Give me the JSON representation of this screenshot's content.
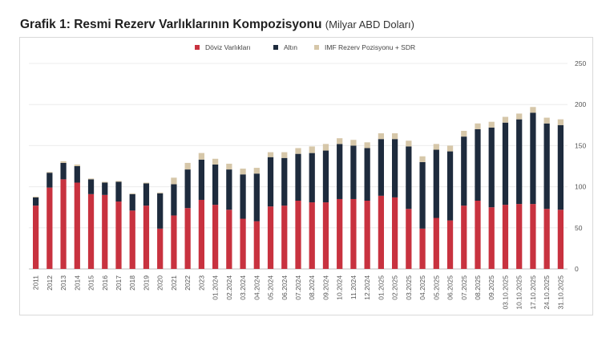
{
  "title": {
    "main": "Grafik 1: Resmi Rezerv Varlıklarının Kompozisyonu",
    "sub": "(Milyar ABD Doları)"
  },
  "chart_data": {
    "type": "bar",
    "stacked": true,
    "categories": [
      "2011",
      "2012",
      "2013",
      "2014",
      "2015",
      "2016",
      "2017",
      "2018",
      "2019",
      "2020",
      "2021",
      "2022",
      "2023",
      "01.2024",
      "02.2024",
      "03.2024",
      "04.2024",
      "05.2024",
      "06.2024",
      "07.2024",
      "08.2024",
      "09.2024",
      "10.2024",
      "11.2024",
      "12.2024",
      "01.2025",
      "02.2025",
      "03.2025",
      "04.2025",
      "05.2025",
      "06.2025",
      "07.2025",
      "08.2025",
      "09.2025",
      "03.10.2025",
      "10.10.2025",
      "17.10.2025",
      "24.10.2025",
      "31.10.2025"
    ],
    "series": [
      {
        "name": "Döviz Varlıkları",
        "color": "#c8323f",
        "values": [
          77,
          99,
          109,
          105,
          91,
          90,
          82,
          71,
          77,
          49,
          65,
          74,
          84,
          78,
          72,
          61,
          58,
          76,
          77,
          83,
          81,
          81,
          85,
          85,
          83,
          89,
          87,
          73,
          49,
          62,
          59,
          77,
          83,
          75,
          78,
          79,
          79,
          73,
          72
        ]
      },
      {
        "name": "Altın",
        "color": "#1e2b3d",
        "values": [
          10,
          18,
          20,
          20,
          18,
          15,
          24,
          20,
          27,
          43,
          38,
          47,
          49,
          49,
          49,
          54,
          58,
          60,
          58,
          57,
          60,
          63,
          67,
          65,
          64,
          69,
          71,
          76,
          81,
          83,
          84,
          84,
          87,
          97,
          100,
          103,
          111,
          104,
          103
        ]
      },
      {
        "name": "IMF Rezerv Pozisyonu + SDR",
        "color": "#d6c7a9",
        "values": [
          1,
          1,
          2,
          2,
          1,
          1,
          1,
          1,
          1,
          1,
          8,
          8,
          8,
          7,
          7,
          7,
          7,
          6,
          7,
          7,
          8,
          8,
          7,
          7,
          7,
          7,
          7,
          7,
          7,
          7,
          7,
          7,
          7,
          7,
          7,
          7,
          7,
          7,
          7
        ]
      }
    ],
    "ylim": [
      0,
      250
    ],
    "yticks": [
      0,
      50,
      100,
      150,
      200,
      250
    ],
    "grid": true,
    "legend_position": "top-center"
  }
}
